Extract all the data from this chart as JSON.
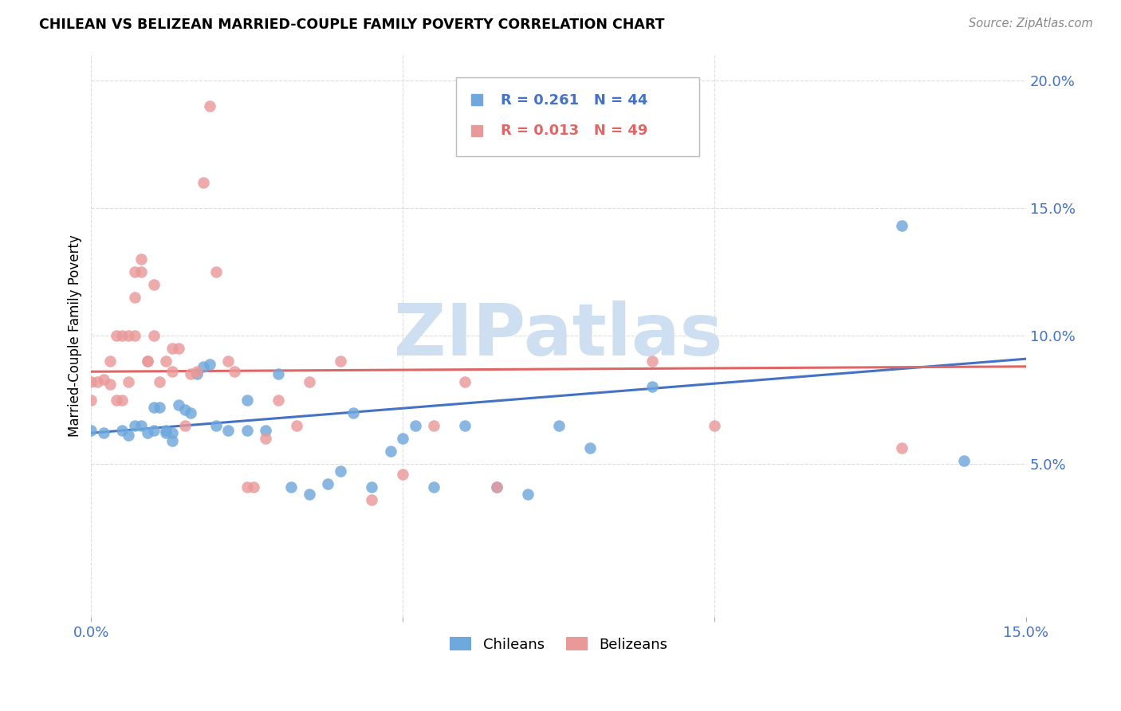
{
  "title": "CHILEAN VS BELIZEAN MARRIED-COUPLE FAMILY POVERTY CORRELATION CHART",
  "source": "Source: ZipAtlas.com",
  "ylabel": "Married-Couple Family Poverty",
  "xlim": [
    0.0,
    0.15
  ],
  "ylim": [
    -0.01,
    0.21
  ],
  "xticks": [
    0.0,
    0.05,
    0.1,
    0.15
  ],
  "xticklabels": [
    "0.0%",
    "",
    "",
    "15.0%"
  ],
  "yticks": [
    0.05,
    0.1,
    0.15,
    0.2
  ],
  "yticklabels": [
    "5.0%",
    "10.0%",
    "15.0%",
    "20.0%"
  ],
  "chilean_color": "#6fa8dc",
  "belizean_color": "#ea9999",
  "chilean_line_color": "#4472c4",
  "belizean_line_color": "#e06666",
  "chilean_R": 0.261,
  "chilean_N": 44,
  "belizean_R": 0.013,
  "belizean_N": 49,
  "watermark_color": "#cddff0",
  "chilean_x": [
    0.0,
    0.002,
    0.005,
    0.006,
    0.007,
    0.008,
    0.009,
    0.01,
    0.01,
    0.011,
    0.012,
    0.012,
    0.013,
    0.013,
    0.014,
    0.015,
    0.016,
    0.017,
    0.018,
    0.019,
    0.02,
    0.022,
    0.025,
    0.025,
    0.028,
    0.03,
    0.032,
    0.035,
    0.038,
    0.04,
    0.042,
    0.045,
    0.048,
    0.05,
    0.052,
    0.055,
    0.06,
    0.065,
    0.07,
    0.075,
    0.08,
    0.09,
    0.13,
    0.14
  ],
  "chilean_y": [
    0.063,
    0.062,
    0.063,
    0.061,
    0.065,
    0.065,
    0.062,
    0.063,
    0.072,
    0.072,
    0.063,
    0.062,
    0.059,
    0.062,
    0.073,
    0.071,
    0.07,
    0.085,
    0.088,
    0.089,
    0.065,
    0.063,
    0.075,
    0.063,
    0.063,
    0.085,
    0.041,
    0.038,
    0.042,
    0.047,
    0.07,
    0.041,
    0.055,
    0.06,
    0.065,
    0.041,
    0.065,
    0.041,
    0.038,
    0.065,
    0.056,
    0.08,
    0.143,
    0.051
  ],
  "belizean_x": [
    0.0,
    0.0,
    0.001,
    0.002,
    0.003,
    0.003,
    0.004,
    0.004,
    0.005,
    0.005,
    0.006,
    0.006,
    0.007,
    0.007,
    0.007,
    0.008,
    0.008,
    0.009,
    0.009,
    0.01,
    0.01,
    0.011,
    0.012,
    0.013,
    0.013,
    0.014,
    0.015,
    0.016,
    0.017,
    0.018,
    0.019,
    0.02,
    0.022,
    0.023,
    0.025,
    0.026,
    0.028,
    0.03,
    0.033,
    0.035,
    0.04,
    0.045,
    0.05,
    0.055,
    0.06,
    0.065,
    0.09,
    0.1,
    0.13
  ],
  "belizean_y": [
    0.075,
    0.082,
    0.082,
    0.083,
    0.081,
    0.09,
    0.075,
    0.1,
    0.075,
    0.1,
    0.1,
    0.082,
    0.1,
    0.115,
    0.125,
    0.125,
    0.13,
    0.09,
    0.09,
    0.1,
    0.12,
    0.082,
    0.09,
    0.086,
    0.095,
    0.095,
    0.065,
    0.085,
    0.086,
    0.16,
    0.19,
    0.125,
    0.09,
    0.086,
    0.041,
    0.041,
    0.06,
    0.075,
    0.065,
    0.082,
    0.09,
    0.036,
    0.046,
    0.065,
    0.082,
    0.041,
    0.09,
    0.065,
    0.056
  ],
  "chilean_line_y0": 0.062,
  "chilean_line_y1": 0.091,
  "belizean_line_y0": 0.086,
  "belizean_line_y1": 0.088
}
